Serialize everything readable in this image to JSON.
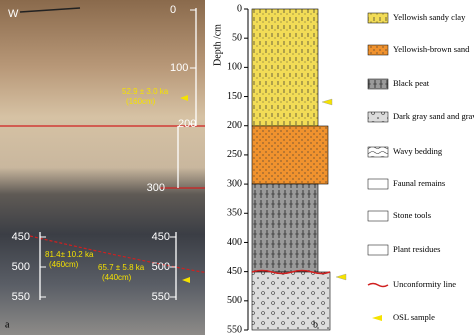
{
  "photo": {
    "label": "a",
    "compass": "W",
    "scale_upper": [
      "0",
      "100",
      "200"
    ],
    "scale_mid": [
      "300"
    ],
    "scale_left": [
      "450",
      "500",
      "550"
    ],
    "scale_right": [
      "450",
      "500",
      "550"
    ],
    "samples": [
      {
        "age": "52.9 ± 3.0 ka",
        "depth": "(160cm)"
      },
      {
        "age": "81.4± 10.2 ka",
        "depth": "(460cm)"
      },
      {
        "age": "65.7 ± 5.8 ka",
        "depth": "(440cm)"
      }
    ]
  },
  "column": {
    "label": "b",
    "axis_title": "Depth /cm",
    "ticks": [
      "0",
      "50",
      "100",
      "150",
      "200",
      "250",
      "300",
      "350",
      "400",
      "450",
      "500",
      "550"
    ]
  },
  "legend": [
    "Yellowish sandy clay",
    "Yellowish-brown sand",
    "Black peat",
    "Dark gray sand and gravell",
    "Wavy bedding",
    "Faunal remains",
    "Stone tools",
    "Plant residues",
    "Unconformity line",
    "OSL sample"
  ]
}
